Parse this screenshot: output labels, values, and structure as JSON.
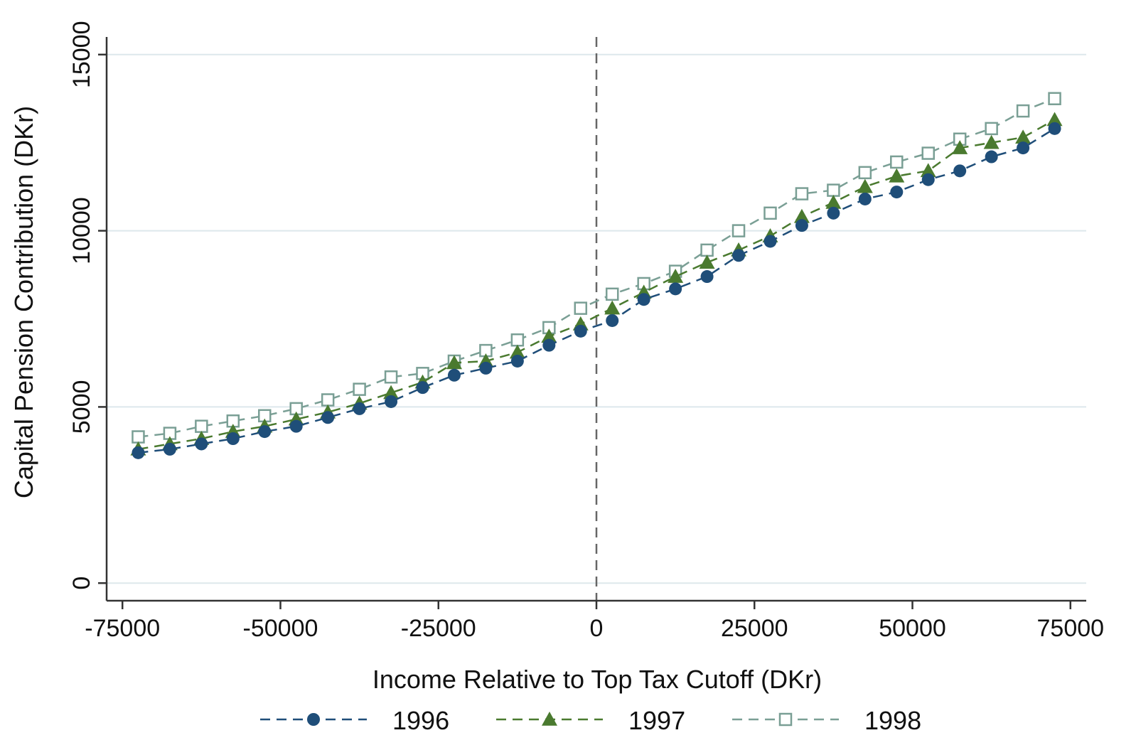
{
  "chart_data": {
    "type": "line",
    "title": "",
    "xlabel": "Income Relative to Top Tax Cutoff (DKr)",
    "ylabel": "Capital Pension Contribution (DKr)",
    "xlim": [
      -77500,
      77500
    ],
    "ylim": [
      -500,
      15500
    ],
    "x_ticks": [
      -75000,
      -50000,
      -25000,
      0,
      25000,
      50000,
      75000
    ],
    "y_ticks": [
      0,
      5000,
      10000,
      15000
    ],
    "x_tick_labels": [
      "-75000",
      "-50000",
      "-25000",
      "0",
      "25000",
      "50000",
      "75000"
    ],
    "y_tick_labels": [
      "0",
      "5000",
      "10000",
      "15000"
    ],
    "grid": "horizontal",
    "reference_line": {
      "x": 0,
      "style": "dashed"
    },
    "legend_position": "bottom",
    "x": [
      -72500,
      -67500,
      -62500,
      -57500,
      -52500,
      -47500,
      -42500,
      -37500,
      -32500,
      -27500,
      -22500,
      -17500,
      -12500,
      -7500,
      -2500,
      2500,
      7500,
      12500,
      17500,
      22500,
      27500,
      32500,
      37500,
      42500,
      47500,
      52500,
      57500,
      62500,
      67500,
      72500
    ],
    "series": [
      {
        "name": "1996",
        "color": "#1f4e79",
        "marker": "filled-circle",
        "values": [
          3700,
          3800,
          3950,
          4100,
          4300,
          4450,
          4700,
          4950,
          5150,
          5550,
          5900,
          6100,
          6300,
          6750,
          7150,
          7450,
          8050,
          8350,
          8700,
          9300,
          9700,
          10150,
          10500,
          10900,
          11100,
          11450,
          11700,
          12100,
          12350,
          12900
        ]
      },
      {
        "name": "1997",
        "color": "#4a7a2f",
        "marker": "filled-triangle",
        "values": [
          3800,
          3950,
          4100,
          4300,
          4450,
          4650,
          4850,
          5100,
          5400,
          5700,
          6250,
          6300,
          6550,
          7000,
          7350,
          7800,
          8250,
          8700,
          9100,
          9450,
          9850,
          10400,
          10800,
          11250,
          11550,
          11700,
          12350,
          12500,
          12650,
          13150
        ]
      },
      {
        "name": "1998",
        "color": "#7a9f95",
        "marker": "hollow-square",
        "values": [
          4150,
          4250,
          4450,
          4600,
          4750,
          4950,
          5200,
          5500,
          5850,
          5950,
          6300,
          6600,
          6900,
          7250,
          7800,
          8200,
          8500,
          8850,
          9450,
          10000,
          10500,
          11050,
          11150,
          11650,
          11950,
          12200,
          12600,
          12900,
          13400,
          13750
        ]
      }
    ]
  }
}
